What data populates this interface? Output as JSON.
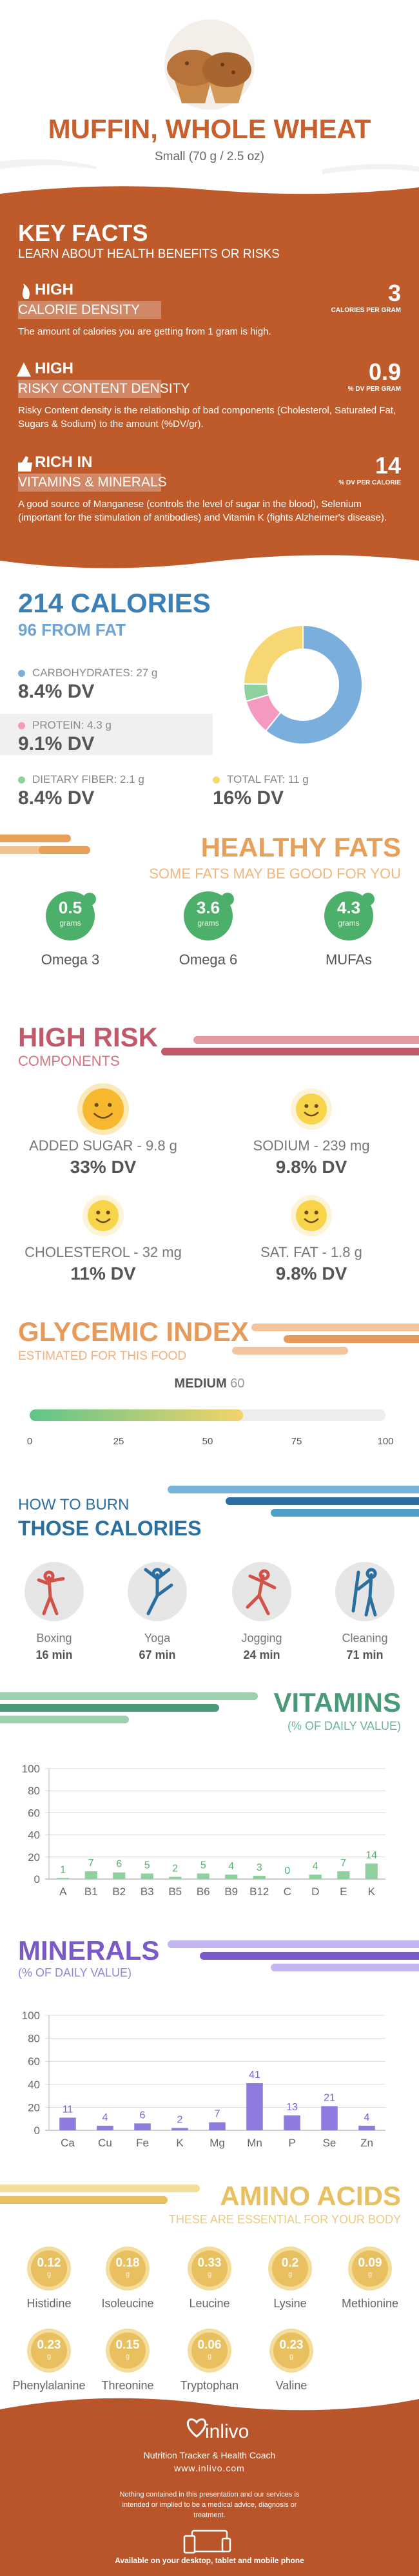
{
  "header": {
    "title": "MUFFIN, WHOLE WHEAT",
    "serving": "Small (70 g / 2.5 oz)"
  },
  "key_facts": {
    "title": "KEY FACTS",
    "subtitle": "LEARN ABOUT HEALTH BENEFITS OR RISKS",
    "items": [
      {
        "level": "HIGH",
        "name": "CALORIE DENSITY",
        "value": 3,
        "unit": "CALORIES PER GRAM",
        "description": "The amount of calories you are getting from 1 gram is high."
      },
      {
        "level": "HIGH",
        "name": "RISKY CONTENT DENSITY",
        "value": 0.9,
        "unit": "% DV PER GRAM",
        "description": "Risky Content density is the relationship of bad components (Cholesterol, Saturated Fat, Sugars & Sodium) to the amount (%DV/gr)."
      },
      {
        "level": "RICH  IN",
        "name": "VITAMINS & MINERALS",
        "value": 14,
        "unit": "% DV PER CALORIE",
        "description": "A good source of Manganese (controls the level of sugar in the blood), Selenium (important for the stimulation of antibodies) and Vitamin K (fights Alzheimer's disease)."
      }
    ]
  },
  "calories": {
    "type": "donut",
    "title": "214 CALORIES",
    "subtitle": "96 FROM FAT",
    "nutrients": [
      {
        "label": "CARBOHYDRATES:",
        "amount": 27,
        "unit": "g",
        "dv": "8.4% DV",
        "color": "#7aaedc"
      },
      {
        "label": "PROTEIN:",
        "amount": 4.3,
        "unit": "g",
        "dv": "9.1% DV",
        "color": "#f49ac1"
      },
      {
        "label": "DIETARY FIBER:",
        "amount": 2.1,
        "unit": "g",
        "dv": "8.4% DV",
        "color": "#8fd19e"
      },
      {
        "label": "TOTAL FAT:",
        "amount": 11,
        "unit": "g",
        "dv": "16% DV",
        "color": "#f7d774"
      }
    ]
  },
  "healthy_fats": {
    "title": "HEALTHY FATS",
    "subtitle": "SOME FATS MAY BE GOOD FOR YOU",
    "items": [
      {
        "value": 0.5,
        "unit": "grams",
        "name": "Omega 3"
      },
      {
        "value": 3.6,
        "unit": "grams",
        "name": "Omega 6"
      },
      {
        "value": 4.3,
        "unit": "grams",
        "name": "MUFAs"
      }
    ]
  },
  "high_risk": {
    "title": "HIGH RISK",
    "subtitle": "COMPONENTS",
    "items": [
      {
        "label": "ADDED SUGAR - 9.8 g",
        "dv": "33% DV"
      },
      {
        "label": "SODIUM - 239 mg",
        "dv": "9.8% DV"
      },
      {
        "label": "CHOLESTEROL - 32 mg",
        "dv": "11% DV"
      },
      {
        "label": "SAT. FAT - 1.8 g",
        "dv": "9.8% DV"
      }
    ]
  },
  "glycemic_index": {
    "title": "GLYCEMIC INDEX",
    "subtitle": "ESTIMATED FOR THIS FOOD",
    "level": "MEDIUM",
    "value": 60,
    "xlim": [
      0,
      100
    ],
    "xticks": [
      0,
      25,
      50,
      75,
      100
    ]
  },
  "burn": {
    "title": "HOW TO BURN",
    "subtitle": "THOSE CALORIES",
    "activities": [
      {
        "name": "Boxing",
        "time": "16 min"
      },
      {
        "name": "Yoga",
        "time": "67 min"
      },
      {
        "name": "Jogging",
        "time": "24 min"
      },
      {
        "name": "Cleaning",
        "time": "71 min"
      }
    ]
  },
  "vitamins": {
    "type": "bar",
    "title": "VITAMINS",
    "subtitle": "(% OF DAILY VALUE)",
    "categories": [
      "A",
      "B1",
      "B2",
      "B3",
      "B5",
      "B6",
      "B9",
      "B12",
      "C",
      "D",
      "E",
      "K"
    ],
    "values": [
      1,
      7,
      6,
      5,
      2,
      5,
      4,
      3,
      0,
      4,
      7,
      14
    ],
    "color": "#8fd19e",
    "label_color": "#5aae6e",
    "ylim": [
      0,
      100
    ],
    "yticks": [
      0,
      20,
      40,
      60,
      80,
      100
    ],
    "grid": true
  },
  "minerals": {
    "type": "bar",
    "title": "MINERALS",
    "subtitle": "(% OF DAILY VALUE)",
    "categories": [
      "Ca",
      "Cu",
      "Fe",
      "K",
      "Mg",
      "Mn",
      "P",
      "Se",
      "Zn"
    ],
    "values": [
      11,
      4,
      6,
      2,
      7,
      41,
      13,
      21,
      4
    ],
    "color": "#8f7ae0",
    "label_color": "#7a62d6",
    "ylim": [
      0,
      100
    ],
    "yticks": [
      0,
      20,
      40,
      60,
      80,
      100
    ],
    "grid": true
  },
  "amino_acids": {
    "title": "AMINO ACIDS",
    "subtitle": "THESE ARE ESSENTIAL FOR YOUR BODY",
    "unit": "g",
    "items": [
      {
        "name": "Histidine",
        "value": 0.12
      },
      {
        "name": "Isoleucine",
        "value": 0.18
      },
      {
        "name": "Leucine",
        "value": 0.33
      },
      {
        "name": "Lysine",
        "value": 0.2
      },
      {
        "name": "Methionine",
        "value": 0.09
      },
      {
        "name": "Phenylalanine",
        "value": 0.23
      },
      {
        "name": "Threonine",
        "value": 0.15
      },
      {
        "name": "Tryptophan",
        "value": 0.06
      },
      {
        "name": "Valine",
        "value": 0.23
      }
    ]
  },
  "footer": {
    "brand": "inlivo",
    "tagline": "Nutrition Tracker & Health Coach",
    "url": "www.inlivo.com",
    "disclaimer": "Nothing contained in this presentation and our services is intended or implied to be a medical advice, diagnosis or treatment.",
    "availability": "Available on your desktop, tablet and mobile phone"
  }
}
